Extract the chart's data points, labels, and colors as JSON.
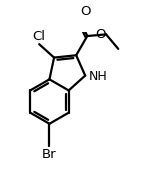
{
  "background": "#ffffff",
  "line_color": "#000000",
  "line_width": 1.6,
  "hcx": 0.32,
  "hcy": 0.5,
  "rh": 0.16,
  "bl": 0.16,
  "font_size": 9.5
}
